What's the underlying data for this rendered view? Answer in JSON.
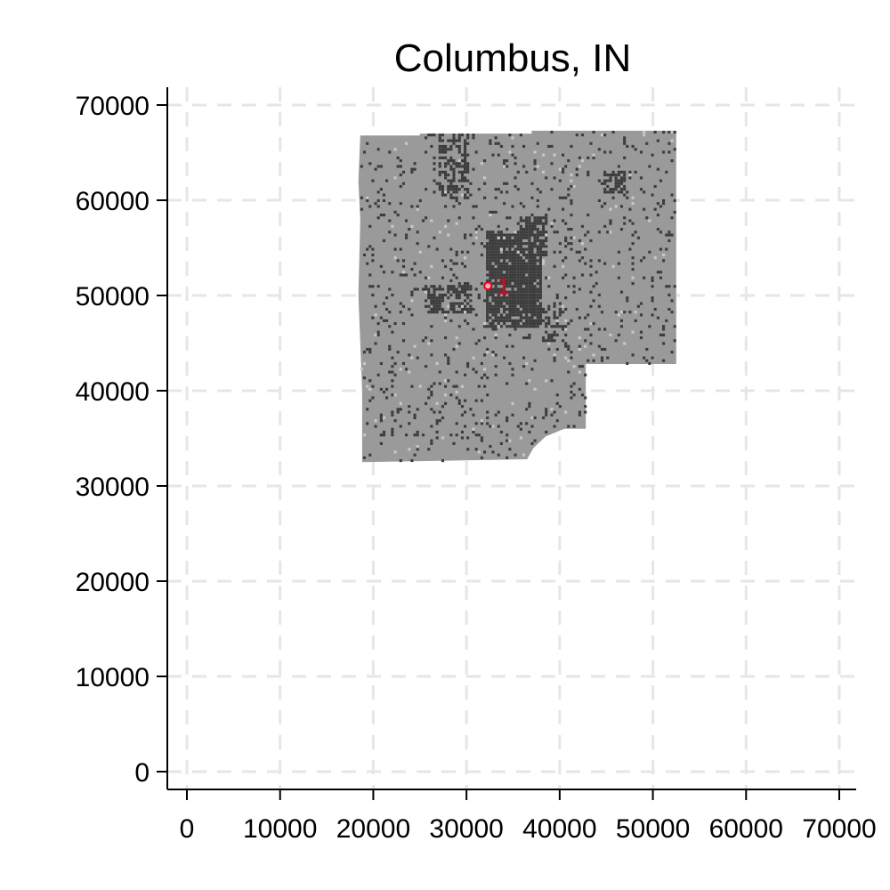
{
  "chart_data": {
    "type": "scatter",
    "title": "Columbus, IN",
    "xlabel": "",
    "ylabel": "",
    "xlim": [
      -2000,
      72000
    ],
    "ylim": [
      -2000,
      72000
    ],
    "x_ticks": [
      0,
      10000,
      20000,
      30000,
      40000,
      50000,
      60000,
      70000
    ],
    "y_ticks": [
      0,
      10000,
      20000,
      30000,
      40000,
      50000,
      60000,
      70000
    ],
    "x_tick_labels": [
      "0",
      "10000",
      "20000",
      "30000",
      "40000",
      "50000",
      "60000",
      "70000"
    ],
    "y_tick_labels": [
      "0",
      "10000",
      "20000",
      "30000",
      "40000",
      "50000",
      "60000",
      "70000"
    ],
    "grid": true,
    "colors": {
      "region_fill": "#9a9a9a",
      "developed_cells": "#3c3c3c",
      "light_cells": "#c8c8c8",
      "marker": "#e8001c",
      "grid": "#e6e6e6"
    },
    "region_outline": [
      [
        18600,
        66800
      ],
      [
        25000,
        66800
      ],
      [
        25000,
        67000
      ],
      [
        37000,
        67000
      ],
      [
        37000,
        67300
      ],
      [
        52500,
        67300
      ],
      [
        52500,
        42800
      ],
      [
        42800,
        42800
      ],
      [
        42800,
        36000
      ],
      [
        40500,
        36000
      ],
      [
        38500,
        35200
      ],
      [
        37200,
        34000
      ],
      [
        36500,
        32800
      ],
      [
        18800,
        32500
      ],
      [
        18800,
        40000
      ],
      [
        18400,
        50000
      ],
      [
        18600,
        58000
      ],
      [
        18400,
        62000
      ]
    ],
    "dense_clusters": [
      {
        "x": [
          32000,
          38000
        ],
        "y": [
          46500,
          56500
        ],
        "density": 0.85
      },
      {
        "x": [
          27000,
          30000
        ],
        "y": [
          60000,
          67000
        ],
        "density": 0.55
      },
      {
        "x": [
          25500,
          30500
        ],
        "y": [
          48000,
          51000
        ],
        "density": 0.6
      },
      {
        "x": [
          44500,
          47000
        ],
        "y": [
          60500,
          63000
        ],
        "density": 0.6
      },
      {
        "x": [
          35500,
          38500
        ],
        "y": [
          54000,
          58000
        ],
        "density": 0.7
      },
      {
        "x": [
          38000,
          41000
        ],
        "y": [
          44000,
          49000
        ],
        "density": 0.35
      }
    ],
    "points": [
      {
        "label": "1",
        "x": 32300,
        "y": 51000
      }
    ]
  }
}
